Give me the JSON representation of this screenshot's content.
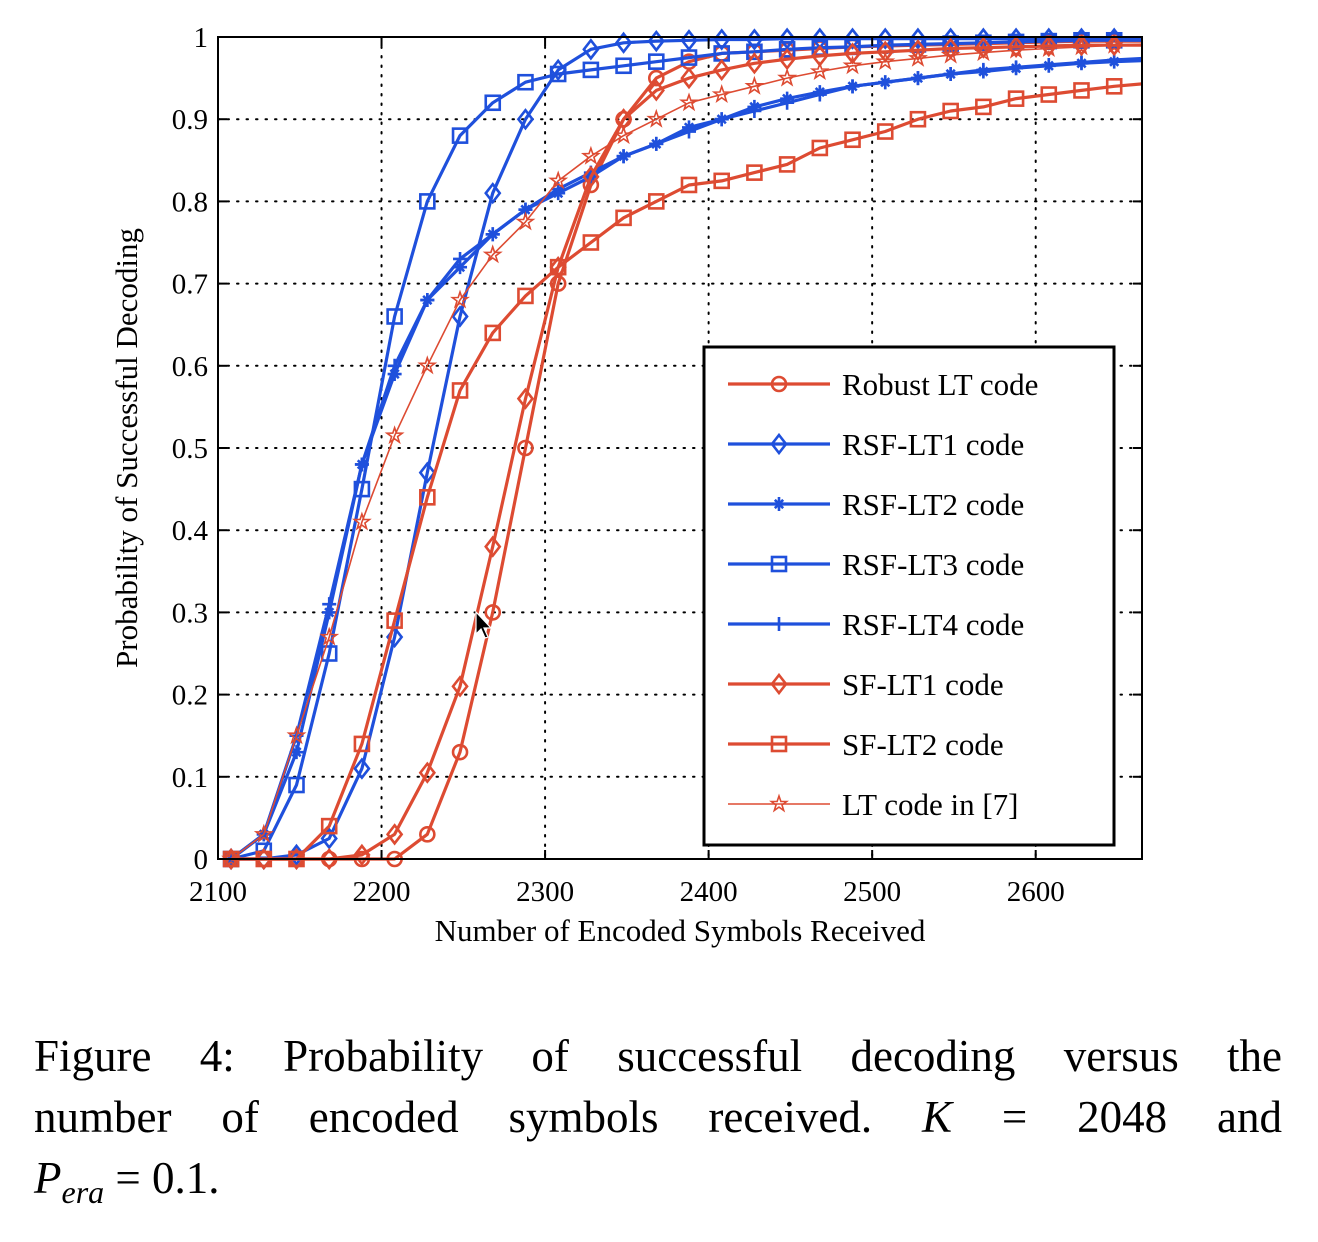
{
  "chart_data": {
    "type": "line",
    "title": "",
    "xlabel": "Number of Encoded Symbols Received",
    "ylabel": "Probability of Successful Decoding",
    "xlim": [
      2100,
      2665
    ],
    "ylim": [
      0,
      1
    ],
    "xticks": [
      2100,
      2200,
      2300,
      2400,
      2500,
      2600
    ],
    "yticks": [
      0,
      0.1,
      0.2,
      0.3,
      0.4,
      0.5,
      0.6,
      0.7,
      0.8,
      0.9,
      1
    ],
    "ytick_labels": [
      "0",
      "0.1",
      "0.2",
      "0.3",
      "0.4",
      "0.5",
      "0.6",
      "0.7",
      "0.8",
      "0.9",
      "1"
    ],
    "grid": true,
    "legend_position": "lower-right",
    "x": [
      2108,
      2128,
      2148,
      2168,
      2188,
      2208,
      2228,
      2248,
      2268,
      2288,
      2308,
      2328,
      2348,
      2368,
      2388,
      2408,
      2428,
      2448,
      2468,
      2488,
      2508,
      2528,
      2548,
      2568,
      2588,
      2608,
      2628,
      2648
    ],
    "series": [
      {
        "name": "Robust LT code",
        "color": "#dd4b32",
        "marker": "circle",
        "thin": false,
        "values": [
          0,
          0,
          0,
          0,
          0,
          0,
          0.03,
          0.13,
          0.3,
          0.5,
          0.7,
          0.82,
          0.9,
          0.95,
          0.97,
          0.98,
          0.982,
          0.984,
          0.986,
          0.988,
          0.989,
          0.99,
          0.991,
          0.992,
          0.993,
          0.994,
          0.995,
          0.995
        ]
      },
      {
        "name": "RSF-LT1 code",
        "color": "#1f50dc",
        "marker": "diamond",
        "thin": false,
        "values": [
          0,
          0,
          0.005,
          0.025,
          0.11,
          0.27,
          0.47,
          0.66,
          0.81,
          0.9,
          0.96,
          0.985,
          0.993,
          0.995,
          0.996,
          0.997,
          0.997,
          0.998,
          0.998,
          0.998,
          0.998,
          0.998,
          0.998,
          0.998,
          0.998,
          0.998,
          0.998,
          0.998
        ]
      },
      {
        "name": "RSF-LT2 code",
        "color": "#1f50dc",
        "marker": "asterisk",
        "thin": false,
        "values": [
          0,
          0.03,
          0.13,
          0.3,
          0.48,
          0.59,
          0.68,
          0.72,
          0.76,
          0.79,
          0.81,
          0.83,
          0.855,
          0.87,
          0.89,
          0.9,
          0.915,
          0.925,
          0.933,
          0.94,
          0.945,
          0.95,
          0.955,
          0.958,
          0.962,
          0.965,
          0.968,
          0.97
        ]
      },
      {
        "name": "RSF-LT3 code",
        "color": "#1f50dc",
        "marker": "square",
        "thin": false,
        "values": [
          0,
          0.01,
          0.09,
          0.25,
          0.45,
          0.66,
          0.8,
          0.88,
          0.92,
          0.945,
          0.955,
          0.96,
          0.965,
          0.97,
          0.975,
          0.98,
          0.982,
          0.985,
          0.987,
          0.988,
          0.99,
          0.991,
          0.992,
          0.993,
          0.994,
          0.995,
          0.996,
          0.996
        ]
      },
      {
        "name": "RSF-LT4 code",
        "color": "#1f50dc",
        "marker": "plus",
        "thin": false,
        "values": [
          0,
          0.03,
          0.15,
          0.31,
          0.48,
          0.6,
          0.68,
          0.73,
          0.76,
          0.79,
          0.815,
          0.835,
          0.855,
          0.87,
          0.885,
          0.9,
          0.91,
          0.92,
          0.93,
          0.94,
          0.945,
          0.95,
          0.955,
          0.96,
          0.963,
          0.966,
          0.969,
          0.972
        ]
      },
      {
        "name": "SF-LT1 code",
        "color": "#dd4b32",
        "marker": "diamond",
        "thin": false,
        "values": [
          0,
          0,
          0,
          0,
          0.005,
          0.03,
          0.105,
          0.21,
          0.38,
          0.56,
          0.72,
          0.83,
          0.9,
          0.935,
          0.95,
          0.96,
          0.968,
          0.973,
          0.977,
          0.98,
          0.982,
          0.984,
          0.986,
          0.987,
          0.988,
          0.989,
          0.99,
          0.99
        ]
      },
      {
        "name": "SF-LT2 code",
        "color": "#dd4b32",
        "marker": "square",
        "thin": false,
        "values": [
          0,
          0,
          0,
          0.04,
          0.14,
          0.29,
          0.44,
          0.57,
          0.64,
          0.685,
          0.72,
          0.75,
          0.78,
          0.8,
          0.82,
          0.825,
          0.835,
          0.845,
          0.865,
          0.875,
          0.885,
          0.9,
          0.91,
          0.915,
          0.925,
          0.93,
          0.935,
          0.94
        ]
      },
      {
        "name": "LT code in [7]",
        "color": "#dd4b32",
        "marker": "star",
        "thin": true,
        "values": [
          0,
          0.03,
          0.15,
          0.27,
          0.41,
          0.515,
          0.6,
          0.68,
          0.735,
          0.775,
          0.825,
          0.855,
          0.88,
          0.9,
          0.92,
          0.93,
          0.94,
          0.95,
          0.958,
          0.965,
          0.97,
          0.974,
          0.978,
          0.981,
          0.984,
          0.986,
          0.988,
          0.99
        ]
      }
    ]
  },
  "caption": {
    "label": "Figure 4:",
    "line1_text": "Probability of successful decoding versus the",
    "line2_text": "number of encoded symbols received.",
    "k_symbol": "K",
    "k_equals": "=",
    "k_value": "2048",
    "k_and": "and",
    "p_symbol": "P",
    "p_subscript": "era",
    "p_equals_value": "= 0.1."
  }
}
